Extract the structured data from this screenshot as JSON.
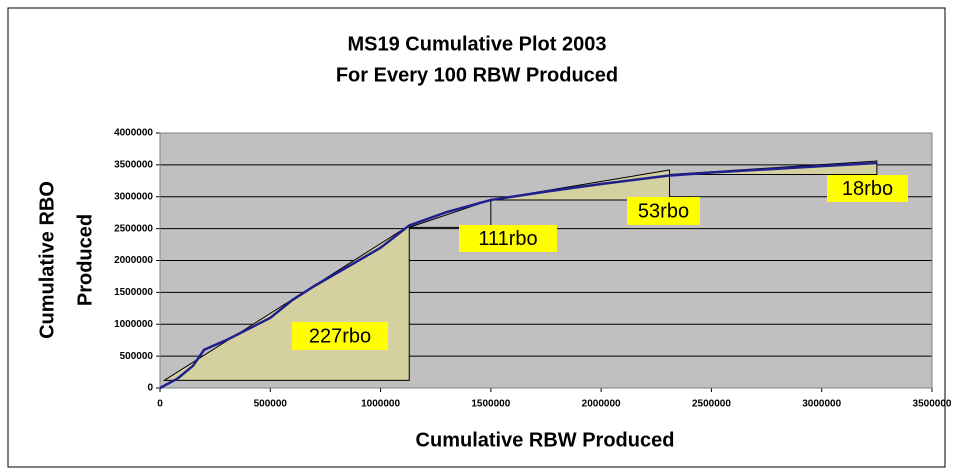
{
  "chart_data": {
    "type": "line",
    "title": "MS19 Cumulative Plot 2003",
    "subtitle": "For Every 100 RBW Produced",
    "x_label": "Cumulative RBW Produced",
    "y_label": [
      "Cumulative RBO",
      "Produced"
    ],
    "xlim": [
      0,
      3500000
    ],
    "xticks": [
      0,
      500000,
      1000000,
      1500000,
      2000000,
      2500000,
      3000000,
      3500000
    ],
    "ylim": [
      0,
      4000000
    ],
    "yticks": [
      0,
      500000,
      1000000,
      1500000,
      2000000,
      2500000,
      3000000,
      3500000,
      4000000
    ],
    "grid": true,
    "series": [
      {
        "name": "Cumulative RBO",
        "color": "#1f1f8f",
        "x": [
          0,
          80000,
          150000,
          200000,
          300000,
          500000,
          600000,
          700000,
          850000,
          1000000,
          1130000,
          1300000,
          1500000,
          1750000,
          2000000,
          2300000,
          2500000,
          2750000,
          3000000,
          3250000
        ],
        "values": [
          0,
          150000,
          350000,
          600000,
          750000,
          1100000,
          1380000,
          1600000,
          1900000,
          2200000,
          2550000,
          2760000,
          2950000,
          3080000,
          3200000,
          3330000,
          3380000,
          3430000,
          3480000,
          3530000
        ]
      }
    ],
    "annotations": [
      {
        "text": "227rbo",
        "triangle": [
          [
            20000,
            120000
          ],
          [
            1130000,
            2550000
          ],
          [
            1130000,
            120000
          ]
        ],
        "shaded": true
      },
      {
        "text": "111rbo",
        "triangle": [
          [
            1130000,
            2520000
          ],
          [
            1500000,
            2950000
          ],
          [
            1500000,
            2520000
          ]
        ],
        "shaded": false
      },
      {
        "text": "53rbo",
        "triangle": [
          [
            1500000,
            2950000
          ],
          [
            2310000,
            3420000
          ],
          [
            2310000,
            2950000
          ]
        ],
        "shaded": true
      },
      {
        "text": "18rbo",
        "triangle": [
          [
            2310000,
            3350000
          ],
          [
            3250000,
            3560000
          ],
          [
            3250000,
            3350000
          ]
        ],
        "shaded": true
      }
    ]
  }
}
